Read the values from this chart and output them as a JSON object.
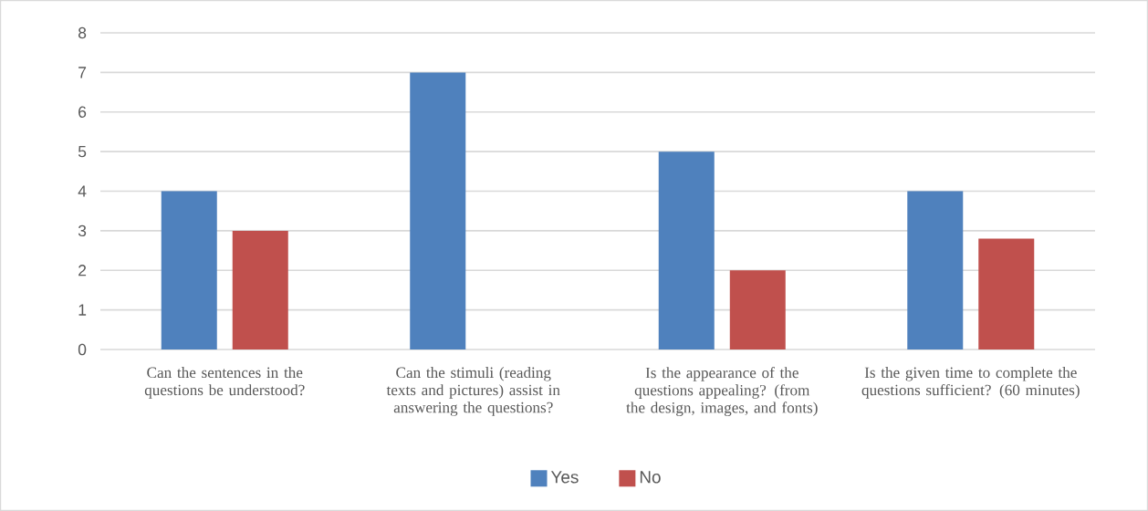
{
  "chart_data": {
    "type": "bar",
    "categories": [
      "Can the sentences in the questions be understood?",
      "Can the stimuli (reading texts and pictures) assist in answering the questions?",
      "Is the appearance of the questions appealing? (from the design, images, and fonts)",
      "Is the given time to complete the questions sufficient? (60 minutes)"
    ],
    "series": [
      {
        "name": "Yes",
        "color": "#4f81bd",
        "values": [
          4,
          7,
          5,
          4
        ]
      },
      {
        "name": "No",
        "color": "#c0504d",
        "values": [
          3,
          0,
          2,
          2.8
        ]
      }
    ],
    "ylim": [
      0,
      8
    ],
    "yticks": [
      0,
      1,
      2,
      3,
      4,
      5,
      6,
      7,
      8
    ],
    "grid": "y",
    "legend": "bottom"
  }
}
